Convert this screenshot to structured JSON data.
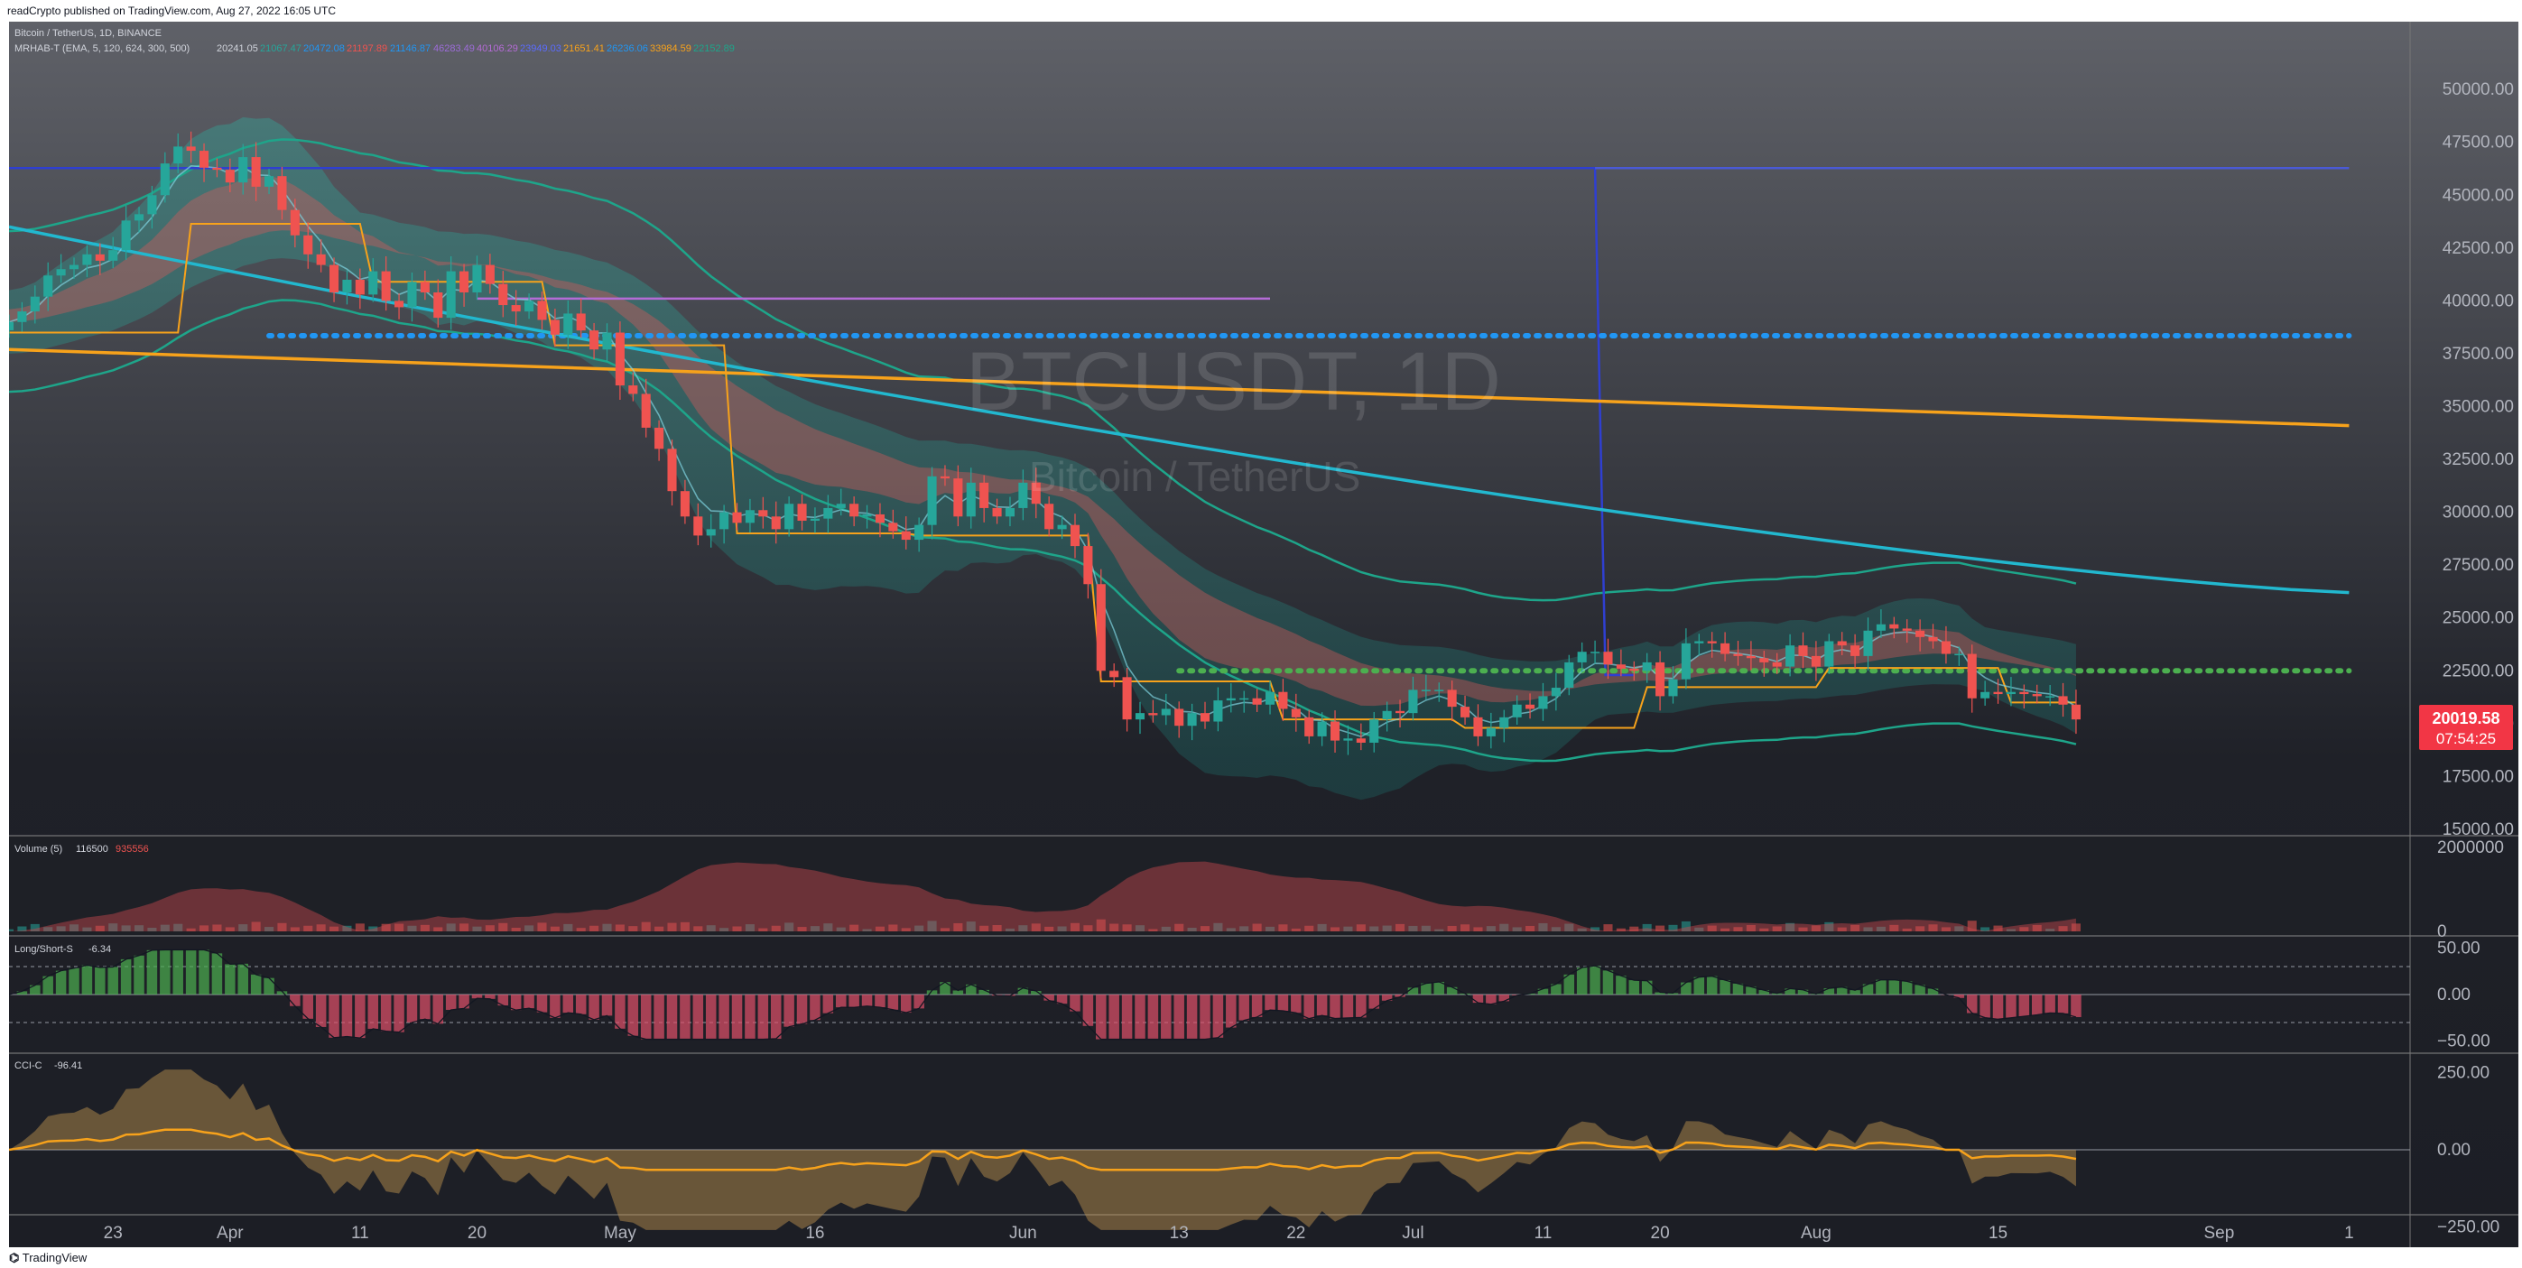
{
  "header": {
    "published_text": "readCrypto published on TradingView.com, Aug 27, 2022 16:05 UTC"
  },
  "footer": {
    "brand": "TradingView"
  },
  "watermark": {
    "symbol": "BTCUSDT, 1D",
    "name": "Bitcoin / TetherUS"
  },
  "legend": {
    "main_title": "Bitcoin / TetherUS, 1D, BINANCE",
    "indicator_line": "MRHAB-T (EMA, 5, 120, 624, 300, 500)",
    "indicator_values": [
      "20241.05",
      "21067.47",
      "20472.08",
      "21197.89",
      "21146.87",
      "46283.49",
      "40106.29",
      "23949.03",
      "21651.41",
      "26236.06",
      "33984.59",
      "22152.89"
    ],
    "volume_title": "Volume (5)",
    "volume_values": [
      "116500",
      "935556"
    ],
    "ls_title": "Long/Short-S",
    "ls_value": "-6.34",
    "cci_title": "CCI-C",
    "cci_value": "-96.41"
  },
  "last_price": {
    "price": "20019.58",
    "countdown": "07:54:25",
    "color": "#f23645"
  },
  "colors": {
    "up": "#26a69a",
    "down": "#ef5350",
    "orange": "#f7a21b",
    "cyan": "#22b8cf",
    "blue": "#2f3fd1",
    "teal": "#1ea58a",
    "purple": "#b46bd6",
    "green_dots": "#4caf50",
    "blue_dots": "#2196f3"
  },
  "chart_data": [
    {
      "type": "candlestick",
      "title": "BTCUSDT, 1D",
      "subtitle": "Bitcoin / TetherUS",
      "y_ticks": [
        "50000.00",
        "47500.00",
        "45000.00",
        "42500.00",
        "40000.00",
        "37500.00",
        "35000.00",
        "32500.00",
        "30000.00",
        "27500.00",
        "25000.00",
        "22500.00",
        "20000.00",
        "17500.00",
        "15000.00"
      ],
      "ylim": [
        14700,
        51500
      ],
      "x_ticks": [
        "23",
        "Apr",
        "11",
        "20",
        "May",
        "16",
        "Jun",
        "13",
        "22",
        "Jul",
        "11",
        "20",
        "Aug",
        "15",
        "Sep",
        "1"
      ],
      "x_tick_days": [
        -9,
        0,
        10,
        19,
        30,
        45,
        61,
        73,
        82,
        91,
        101,
        110,
        122,
        136,
        153,
        163
      ],
      "xlim": [
        -17,
        167
      ],
      "close_day_start": -17,
      "close": [
        39000,
        39500,
        40200,
        41200,
        41500,
        41700,
        42200,
        41900,
        42400,
        43800,
        44100,
        45000,
        46500,
        47300,
        47100,
        46300,
        46200,
        45600,
        46800,
        45400,
        45900,
        44300,
        43100,
        42200,
        41700,
        40400,
        41000,
        40300,
        41400,
        40000,
        39700,
        40900,
        40400,
        39200,
        41400,
        40400,
        41700,
        40800,
        39800,
        39500,
        40000,
        39100,
        38400,
        39400,
        38600,
        37700,
        38500,
        36000,
        35600,
        34000,
        33000,
        31000,
        29800,
        28900,
        29200,
        30000,
        29500,
        30100,
        29800,
        29200,
        30400,
        29600,
        29700,
        30200,
        30400,
        29800,
        29900,
        29500,
        29100,
        28700,
        29400,
        31700,
        31600,
        29800,
        31400,
        30200,
        29800,
        30200,
        31400,
        30400,
        29200,
        29400,
        28400,
        26600,
        22500,
        22200,
        20200,
        20500,
        20400,
        20700,
        19900,
        20500,
        20100,
        21100,
        21200,
        21200,
        20900,
        21500,
        20700,
        20300,
        19400,
        20100,
        19200,
        19300,
        19100,
        20200,
        20600,
        20500,
        21600,
        21600,
        21600,
        20800,
        20300,
        19400,
        19800,
        20300,
        20900,
        20700,
        21300,
        21700,
        22900,
        23400,
        23400,
        22800,
        22600,
        22500,
        22900,
        21300,
        22100,
        23800,
        23900,
        23800,
        23300,
        23200,
        23100,
        22900,
        22700,
        23700,
        23200,
        22700,
        23900,
        23700,
        23200,
        24400,
        24700,
        24500,
        24400,
        24100,
        23900,
        23300,
        23300,
        21200,
        21500,
        21400,
        21500,
        21400,
        21300,
        21300,
        20900,
        20200
      ],
      "annotations": [
        {
          "label": "blue step line",
          "day_from": -17,
          "day_to": 105,
          "value": 46283,
          "then": 22300
        },
        {
          "label": "long blue level",
          "day_from": 105,
          "day_to": 163,
          "value": 46283
        },
        {
          "label": "purple level",
          "day_from": 19,
          "day_to": 80,
          "value": 40106
        },
        {
          "label": "blue dotted level",
          "day_from": 3,
          "day_to": 163,
          "value": 38350
        },
        {
          "label": "green dotted level",
          "day_from": 73,
          "day_to": 163,
          "value": 22500
        },
        {
          "label": "orange EMA",
          "day_from": -17,
          "day_to": 163,
          "value_from": 37700,
          "value_to": 34100
        },
        {
          "label": "cyan EMA",
          "day_from": -17,
          "day_to": 163,
          "value_from": 43500,
          "value_to": 26200
        }
      ]
    },
    {
      "type": "bar",
      "title": "Volume (5)",
      "y_ticks": [
        "2000000",
        "0"
      ],
      "ylim": [
        0,
        2150000
      ]
    },
    {
      "type": "bar",
      "title": "Long/Short-S",
      "y_ticks": [
        "50.00",
        "0.00",
        "−50.00"
      ],
      "ylim": [
        -62,
        62
      ]
    },
    {
      "type": "area",
      "title": "CCI-C",
      "y_ticks": [
        "250.00",
        "0.00",
        "−250.00"
      ],
      "ylim": [
        -310,
        310
      ]
    }
  ]
}
